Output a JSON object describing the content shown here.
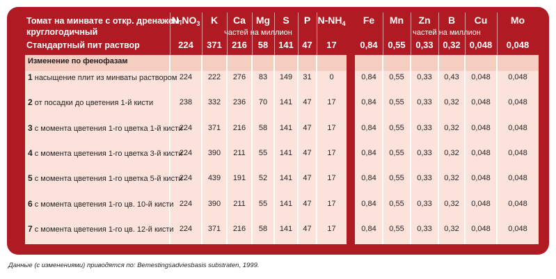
{
  "table": {
    "title_line1": "Томат на минвате с  откр. дренажем,",
    "title_line2": "круглогодичный",
    "columns_left": [
      "N-NO",
      "K",
      "Ca",
      "Mg",
      "S",
      "P",
      "N-NH"
    ],
    "columns_left_sub": [
      "3",
      "",
      "",
      "",
      "",
      "",
      "4"
    ],
    "columns_right": [
      "Fe",
      "Mn",
      "Zn",
      "B",
      "Cu",
      "Mo"
    ],
    "unit_left": "частей на миллион",
    "unit_right": "частей на миллион",
    "standard_label": "Стандартный пит раствор",
    "standard_values": [
      "224",
      "371",
      "216",
      "58",
      "141",
      "47",
      "17",
      "0,84",
      "0,55",
      "0,33",
      "0,32",
      "0,048",
      "0,048"
    ],
    "section_label": "Изменение по фенофазам",
    "rows": [
      {
        "num": "1",
        "label": "насыщение плит из минваты раствором",
        "values": [
          "224",
          "222",
          "276",
          "83",
          "149",
          "31",
          "0",
          "0,84",
          "0,55",
          "0,33",
          "0,43",
          "0,048",
          "0,048"
        ]
      },
      {
        "num": "2",
        "label": "от посадки до цветения 1-й кисти",
        "values": [
          "238",
          "332",
          "236",
          "70",
          "141",
          "47",
          "17",
          "0,84",
          "0,55",
          "0,33",
          "0,32",
          "0,048",
          "0,048"
        ]
      },
      {
        "num": "3",
        "label": "с момента цветения 1-го цветка 1-й кисти",
        "values": [
          "224",
          "371",
          "216",
          "58",
          "141",
          "47",
          "17",
          "0,84",
          "0,55",
          "0,33",
          "0,32",
          "0,048",
          "0,048"
        ]
      },
      {
        "num": "4",
        "label": "с момента цветения 1-го цветка 3-й кисти",
        "values": [
          "224",
          "390",
          "211",
          "55",
          "141",
          "47",
          "17",
          "0,84",
          "0,55",
          "0,33",
          "0,32",
          "0,048",
          "0,048"
        ]
      },
      {
        "num": "5",
        "label": "с момента цветения 1-го цветка 5-й кисти",
        "values": [
          "224",
          "439",
          "191",
          "52",
          "141",
          "47",
          "17",
          "0,84",
          "0,55",
          "0,33",
          "0,32",
          "0,048",
          "0,048"
        ]
      },
      {
        "num": "6",
        "label": "с момента цветения 1-го цв. 10-й кисти",
        "values": [
          "224",
          "390",
          "211",
          "55",
          "141",
          "47",
          "17",
          "0,84",
          "0,55",
          "0,33",
          "0,32",
          "0,048",
          "0,048"
        ]
      },
      {
        "num": "7",
        "label": "с момента цветения 1-го цв. 12-й кисти",
        "values": [
          "224",
          "371",
          "216",
          "58",
          "141",
          "47",
          "17",
          "0,84",
          "0,55",
          "0,33",
          "0,32",
          "0,048",
          "0,048"
        ]
      }
    ]
  },
  "footnote": "Данные (с изменениями) приводятся по: Bemestingsadviesbasis substraten, 1999."
}
